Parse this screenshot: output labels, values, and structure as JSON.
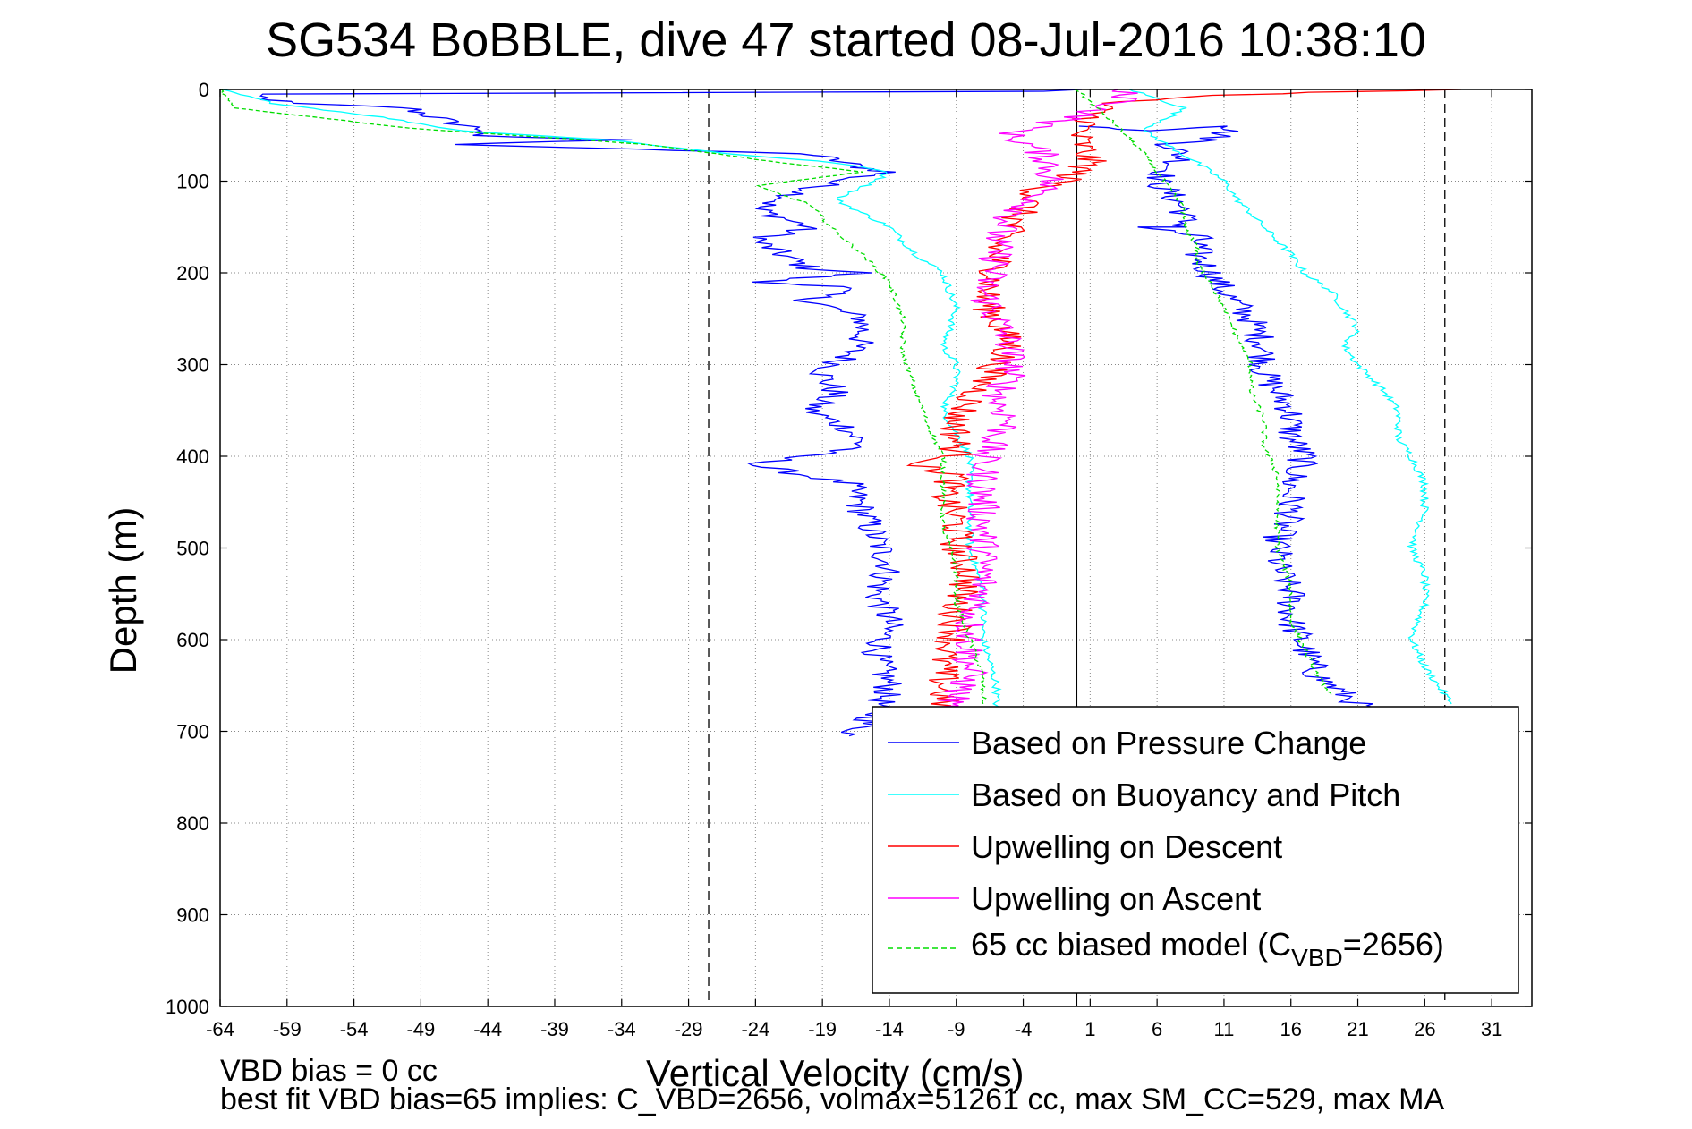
{
  "chart_data": {
    "type": "line",
    "title": "SG534 BoBBLE, dive 47 started 08-Jul-2016 10:38:10",
    "xlabel": "Vertical Velocity (cm/s)",
    "ylabel": "Depth (m)",
    "xlim": [
      -64,
      34
    ],
    "ylim": [
      1000,
      0
    ],
    "xticks": [
      "-64",
      "-59",
      "-54",
      "-49",
      "-44",
      "-39",
      "-34",
      "-29",
      "-24",
      "-19",
      "-14",
      "-9",
      "-4",
      "1",
      "6",
      "11",
      "16",
      "21",
      "26",
      "31"
    ],
    "yticks": [
      "0",
      "100",
      "200",
      "300",
      "400",
      "500",
      "600",
      "700",
      "800",
      "900",
      "1000"
    ],
    "grid": true,
    "legend_position": "bottom-right",
    "reference_lines": [
      {
        "x": -27.5,
        "style": "dashed"
      },
      {
        "x": 0,
        "style": "solid"
      },
      {
        "x": 27.5,
        "style": "dashed"
      }
    ],
    "series": [
      {
        "name": "Based on Pressure Change",
        "color": "#0000ff",
        "style": "solid",
        "descent": [
          [
            0,
            0
          ],
          [
            -2,
            2
          ],
          [
            -62,
            5
          ],
          [
            -59,
            15
          ],
          [
            -50,
            20
          ],
          [
            -47,
            35
          ],
          [
            -44,
            45
          ],
          [
            -46,
            50
          ],
          [
            -34,
            55
          ],
          [
            -46,
            60
          ],
          [
            -34,
            65
          ],
          [
            -26,
            68
          ],
          [
            -20,
            70
          ],
          [
            -16,
            85
          ],
          [
            -14,
            90
          ],
          [
            -18,
            100
          ],
          [
            -20,
            110
          ],
          [
            -24,
            130
          ],
          [
            -20,
            150
          ],
          [
            -24,
            165
          ],
          [
            -22,
            180
          ],
          [
            -20,
            195
          ],
          [
            -16,
            200
          ],
          [
            -24,
            210
          ],
          [
            -17,
            215
          ],
          [
            -20,
            230
          ],
          [
            -16,
            250
          ],
          [
            -16,
            270
          ],
          [
            -17,
            290
          ],
          [
            -19,
            310
          ],
          [
            -18,
            330
          ],
          [
            -20,
            350
          ],
          [
            -17,
            370
          ],
          [
            -16,
            390
          ],
          [
            -21,
            400
          ],
          [
            -24,
            410
          ],
          [
            -17,
            430
          ],
          [
            -16,
            460
          ],
          [
            -15,
            490
          ],
          [
            -14,
            520
          ],
          [
            -15,
            550
          ],
          [
            -14,
            580
          ],
          [
            -15,
            620
          ],
          [
            -14,
            650
          ],
          [
            -15,
            680
          ],
          [
            -16,
            695
          ],
          [
            -17,
            705
          ]
        ],
        "ascent": [
          [
            0,
            40
          ],
          [
            6,
            45
          ],
          [
            12,
            40
          ],
          [
            10,
            55
          ],
          [
            7,
            60
          ],
          [
            8,
            75
          ],
          [
            7,
            85
          ],
          [
            6,
            100
          ],
          [
            7,
            115
          ],
          [
            8,
            130
          ],
          [
            8,
            150
          ],
          [
            5,
            150
          ],
          [
            9,
            160
          ],
          [
            9,
            180
          ],
          [
            10,
            200
          ],
          [
            11,
            220
          ],
          [
            13,
            250
          ],
          [
            14,
            280
          ],
          [
            14,
            310
          ],
          [
            15,
            330
          ],
          [
            16,
            350
          ],
          [
            16,
            380
          ],
          [
            17,
            400
          ],
          [
            16,
            430
          ],
          [
            16,
            460
          ],
          [
            15,
            490
          ],
          [
            15,
            520
          ],
          [
            16,
            550
          ],
          [
            16,
            580
          ],
          [
            17,
            610
          ],
          [
            18,
            640
          ],
          [
            20,
            660
          ],
          [
            22,
            680
          ]
        ]
      },
      {
        "name": "Based on Buoyancy and Pitch",
        "color": "#00ffff",
        "style": "solid",
        "descent": [
          [
            -64,
            0
          ],
          [
            -60,
            15
          ],
          [
            -52,
            30
          ],
          [
            -46,
            45
          ],
          [
            -35,
            55
          ],
          [
            -26,
            70
          ],
          [
            -18,
            80
          ],
          [
            -14,
            90
          ],
          [
            -15,
            100
          ],
          [
            -18,
            120
          ],
          [
            -14,
            150
          ],
          [
            -12,
            180
          ],
          [
            -10,
            200
          ],
          [
            -9,
            240
          ],
          [
            -10,
            280
          ],
          [
            -9,
            300
          ],
          [
            -9,
            320
          ],
          [
            -10,
            350
          ],
          [
            -8,
            400
          ],
          [
            -8,
            450
          ],
          [
            -8,
            500
          ],
          [
            -7,
            550
          ],
          [
            -7,
            600
          ],
          [
            -6,
            650
          ],
          [
            -6,
            680
          ]
        ],
        "ascent": [
          [
            4,
            0
          ],
          [
            6,
            10
          ],
          [
            8,
            20
          ],
          [
            7,
            30
          ],
          [
            5,
            45
          ],
          [
            9,
            80
          ],
          [
            11,
            100
          ],
          [
            12,
            120
          ],
          [
            14,
            150
          ],
          [
            16,
            180
          ],
          [
            17,
            200
          ],
          [
            19,
            220
          ],
          [
            20,
            240
          ],
          [
            21,
            260
          ],
          [
            20,
            280
          ],
          [
            21,
            300
          ],
          [
            23,
            330
          ],
          [
            24,
            350
          ],
          [
            24,
            380
          ],
          [
            25,
            400
          ],
          [
            26,
            430
          ],
          [
            26,
            460
          ],
          [
            25,
            500
          ],
          [
            26,
            530
          ],
          [
            26,
            560
          ],
          [
            25,
            600
          ],
          [
            26,
            630
          ],
          [
            27,
            650
          ],
          [
            28,
            670
          ]
        ]
      },
      {
        "name": "Upwelling on Descent",
        "color": "#ff0000",
        "style": "solid",
        "values": [
          [
            30,
            0
          ],
          [
            18,
            3
          ],
          [
            8,
            8
          ],
          [
            2,
            15
          ],
          [
            0,
            50
          ],
          [
            1,
            80
          ],
          [
            0,
            90
          ],
          [
            -1,
            100
          ],
          [
            -3,
            110
          ],
          [
            -4,
            130
          ],
          [
            -5,
            150
          ],
          [
            -6,
            170
          ],
          [
            -6,
            200
          ],
          [
            -7,
            230
          ],
          [
            -6,
            250
          ],
          [
            -5,
            280
          ],
          [
            -6,
            300
          ],
          [
            -7,
            320
          ],
          [
            -8,
            340
          ],
          [
            -9,
            360
          ],
          [
            -9,
            380
          ],
          [
            -9,
            400
          ],
          [
            -12,
            410
          ],
          [
            -9,
            420
          ],
          [
            -10,
            440
          ],
          [
            -9,
            470
          ],
          [
            -9,
            500
          ],
          [
            -8,
            530
          ],
          [
            -9,
            560
          ],
          [
            -9,
            590
          ],
          [
            -10,
            620
          ],
          [
            -10,
            650
          ],
          [
            -10,
            680
          ]
        ]
      },
      {
        "name": "Upwelling on Ascent",
        "color": "#ff00ff",
        "style": "solid",
        "values": [
          [
            3,
            0
          ],
          [
            4,
            10
          ],
          [
            2,
            20
          ],
          [
            0,
            30
          ],
          [
            -3,
            40
          ],
          [
            -5,
            50
          ],
          [
            -3,
            65
          ],
          [
            -2,
            80
          ],
          [
            -2,
            100
          ],
          [
            -3,
            120
          ],
          [
            -5,
            140
          ],
          [
            -6,
            160
          ],
          [
            -6,
            190
          ],
          [
            -7,
            220
          ],
          [
            -6,
            250
          ],
          [
            -5,
            280
          ],
          [
            -5,
            310
          ],
          [
            -6,
            340
          ],
          [
            -5,
            360
          ],
          [
            -6,
            380
          ],
          [
            -7,
            400
          ],
          [
            -7,
            430
          ],
          [
            -7,
            460
          ],
          [
            -7,
            490
          ],
          [
            -7,
            520
          ],
          [
            -7,
            550
          ],
          [
            -8,
            580
          ],
          [
            -8,
            610
          ],
          [
            -8,
            640
          ],
          [
            -9,
            660
          ],
          [
            -10,
            680
          ]
        ]
      },
      {
        "name": "65 cc biased model (C_VBD=2656)",
        "color": "#00dd00",
        "style": "dashed",
        "descent": [
          [
            -64,
            0
          ],
          [
            -63,
            20
          ],
          [
            -57,
            30
          ],
          [
            -50,
            42
          ],
          [
            -42,
            50
          ],
          [
            -32,
            60
          ],
          [
            -22,
            80
          ],
          [
            -16,
            90
          ],
          [
            -24,
            105
          ],
          [
            -20,
            125
          ],
          [
            -18,
            155
          ],
          [
            -16,
            180
          ],
          [
            -14,
            210
          ],
          [
            -13,
            250
          ],
          [
            -13,
            290
          ],
          [
            -12,
            330
          ],
          [
            -11,
            370
          ],
          [
            -10,
            400
          ],
          [
            -10,
            440
          ],
          [
            -10,
            480
          ],
          [
            -9,
            520
          ],
          [
            -9,
            560
          ],
          [
            -8,
            600
          ],
          [
            -7,
            640
          ],
          [
            -7,
            670
          ]
        ],
        "ascent": [
          [
            0,
            0
          ],
          [
            3,
            40
          ],
          [
            4,
            55
          ],
          [
            5,
            70
          ],
          [
            6,
            90
          ],
          [
            7,
            110
          ],
          [
            8,
            130
          ],
          [
            8,
            150
          ],
          [
            9,
            170
          ],
          [
            9,
            190
          ],
          [
            10,
            210
          ],
          [
            11,
            240
          ],
          [
            12,
            270
          ],
          [
            13,
            300
          ],
          [
            13,
            330
          ],
          [
            14,
            360
          ],
          [
            14,
            390
          ],
          [
            15,
            420
          ],
          [
            15,
            460
          ],
          [
            15,
            500
          ],
          [
            16,
            540
          ],
          [
            16,
            580
          ],
          [
            17,
            610
          ],
          [
            18,
            640
          ],
          [
            19,
            660
          ]
        ]
      }
    ],
    "legend_labels": {
      "s0": "Based on Pressure Change",
      "s1": "Based on Buoyancy and Pitch",
      "s2": "Upwelling on Descent",
      "s3": "Upwelling on Ascent",
      "s4_prefix": "65 cc biased model (C",
      "s4_sub": "VBD",
      "s4_suffix": "=2656)"
    }
  },
  "footer": {
    "line1": "VBD bias = 0 cc",
    "line2": "best fit VBD bias=65 implies: C_VBD=2656, volmax=51261 cc, max SM_CC=529, max MA"
  }
}
